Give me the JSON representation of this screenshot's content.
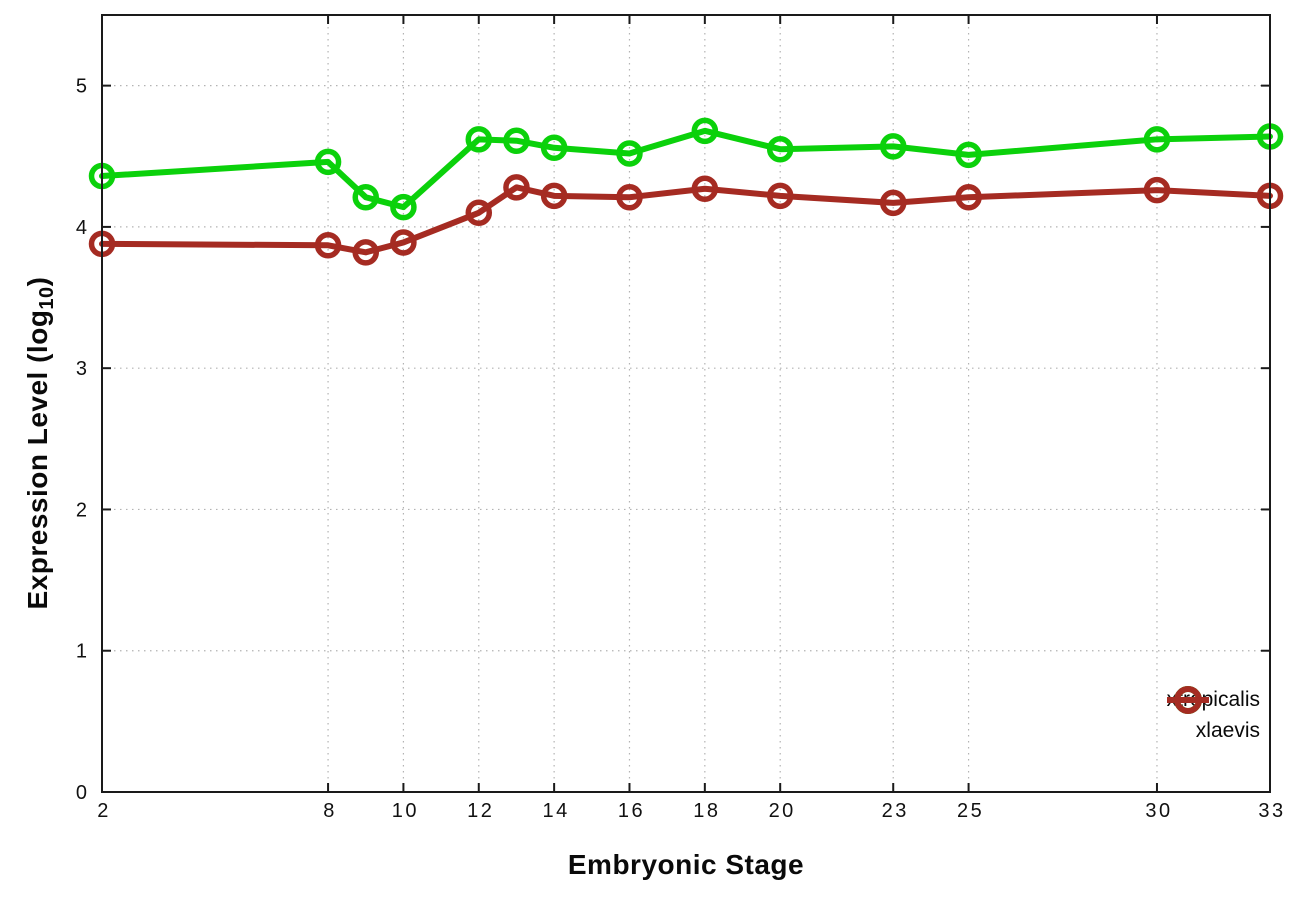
{
  "chart_data": {
    "type": "line",
    "title": "",
    "xlabel": "Embryonic Stage",
    "ylabel": "Expression Level (log10)",
    "ylabel_parts": {
      "main": "Expression Level (log",
      "sub": "10",
      "end": ")"
    },
    "x": [
      2,
      8,
      9,
      10,
      12,
      13,
      14,
      16,
      18,
      20,
      23,
      25,
      30,
      33
    ],
    "xtick_labels": [
      "2",
      "8",
      "10",
      "12",
      "14",
      "16",
      "18",
      "20",
      "23",
      "25",
      "30",
      "33"
    ],
    "xtick_values": [
      2,
      8,
      10,
      12,
      14,
      16,
      18,
      20,
      23,
      25,
      30,
      33
    ],
    "ytick_labels": [
      "0",
      "1",
      "2",
      "3",
      "4",
      "5"
    ],
    "ytick_values": [
      0,
      1,
      2,
      3,
      4,
      5
    ],
    "xlim": [
      2,
      33
    ],
    "ylim": [
      0,
      5.5
    ],
    "grid": true,
    "legend_position": "inside-bottom-right",
    "series": [
      {
        "name": "xtropicalis",
        "color": "#0bd10b",
        "values": [
          4.36,
          4.46,
          4.21,
          4.14,
          4.62,
          4.61,
          4.56,
          4.52,
          4.68,
          4.55,
          4.57,
          4.51,
          4.62,
          4.64
        ]
      },
      {
        "name": "xlaevis",
        "color": "#a52b22",
        "values": [
          3.88,
          3.87,
          3.82,
          3.89,
          4.1,
          4.28,
          4.22,
          4.21,
          4.27,
          4.22,
          4.17,
          4.21,
          4.26,
          4.22
        ]
      }
    ],
    "colors": {
      "background": "#ffffff",
      "axis": "#1a1a1a",
      "grid": "#b3b3b3",
      "tick_text": "#111111"
    }
  }
}
